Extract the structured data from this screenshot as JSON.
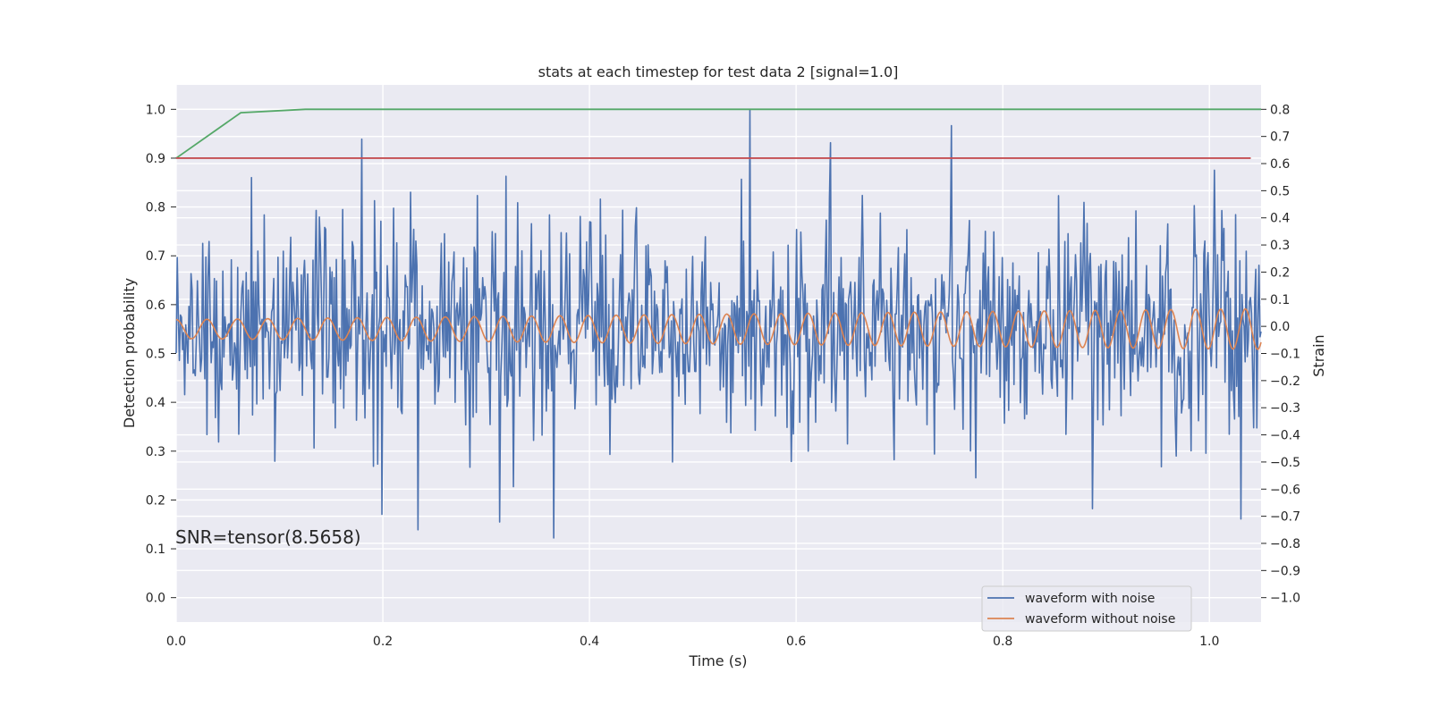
{
  "chart_data": {
    "type": "line",
    "title": "stats at each timestep for test data 2 [signal=1.0]",
    "xlabel": "Time (s)",
    "ylabel": "Detection probability",
    "y2label": "Strain",
    "annotation": "SNR=tensor(8.5658)",
    "xlim": [
      0.0,
      1.05
    ],
    "ylim": [
      -0.05,
      1.05
    ],
    "y2lim": [
      -1.09,
      0.89
    ],
    "x_ticks": [
      "0.0",
      "0.2",
      "0.4",
      "0.6",
      "0.8",
      "1.0"
    ],
    "x_tick_values": [
      0.0,
      0.2,
      0.4,
      0.6,
      0.8,
      1.0
    ],
    "y_ticks": [
      "0.0",
      "0.1",
      "0.2",
      "0.3",
      "0.4",
      "0.5",
      "0.6",
      "0.7",
      "0.8",
      "0.9",
      "1.0"
    ],
    "y_tick_values": [
      0.0,
      0.1,
      0.2,
      0.3,
      0.4,
      0.5,
      0.6,
      0.7,
      0.8,
      0.9,
      1.0
    ],
    "y2_ticks": [
      "−1.0",
      "−0.9",
      "−0.8",
      "−0.7",
      "−0.6",
      "−0.5",
      "−0.4",
      "−0.3",
      "−0.2",
      "−0.1",
      "0.0",
      "0.1",
      "0.2",
      "0.3",
      "0.4",
      "0.5",
      "0.6",
      "0.7",
      "0.8"
    ],
    "y2_tick_values": [
      -1.0,
      -0.9,
      -0.8,
      -0.7,
      -0.6,
      -0.5,
      -0.4,
      -0.3,
      -0.2,
      -0.1,
      0.0,
      0.1,
      0.2,
      0.3,
      0.4,
      0.5,
      0.6,
      0.7,
      0.8
    ],
    "grid": true,
    "legend_position": "bottom-right",
    "legend": [
      "waveform with noise",
      "waveform without noise"
    ],
    "series": [
      {
        "name": "waveform with noise",
        "axis": "right",
        "color": "#4c72b0",
        "x_start": 0.0,
        "x_end": 1.05,
        "n_points": 1024,
        "noise_std": 0.2,
        "range": [
          -0.79,
          0.8
        ],
        "notable_points": [
          {
            "x": 0.234,
            "y": -0.75
          },
          {
            "x": 0.365,
            "y": -0.78
          },
          {
            "x": 1.03,
            "y": -0.71
          },
          {
            "x": 0.555,
            "y": 0.8
          },
          {
            "x": 0.75,
            "y": 0.74
          },
          {
            "x": 0.18,
            "y": 0.69
          }
        ]
      },
      {
        "name": "waveform without noise",
        "axis": "right",
        "color": "#dd8452",
        "x_start": 0.0,
        "x_end": 1.05,
        "n_points": 1024,
        "offset": -0.01,
        "amplitude_start": 0.035,
        "amplitude_end": 0.075,
        "cycles": 40,
        "cycles_per_time_at_start": 33.5,
        "cycles_per_time_at_end": 42
      },
      {
        "axis": "left",
        "color": "#55a868",
        "x": [
          0.0,
          0.0625,
          0.125,
          1.05
        ],
        "y": [
          0.9,
          0.993,
          1.0,
          1.0
        ]
      },
      {
        "axis": "left",
        "color": "#c44e52",
        "x": [
          0.0,
          1.04
        ],
        "y": [
          0.9,
          0.9
        ]
      }
    ]
  }
}
